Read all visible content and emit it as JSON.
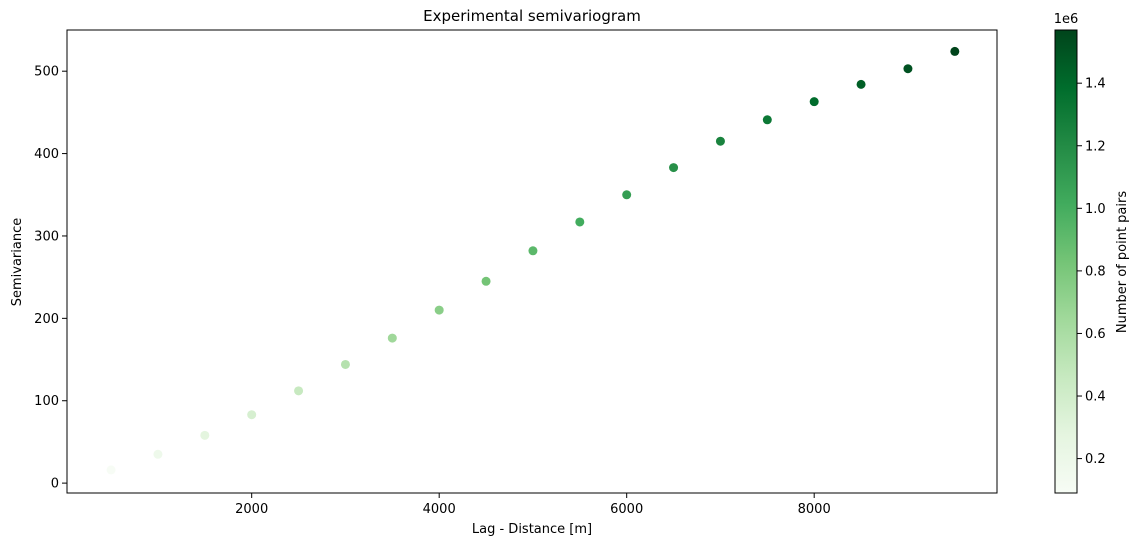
{
  "chart_data": {
    "type": "scatter",
    "title": "Experimental semivariogram",
    "xlabel": "Lag - Distance [m]",
    "ylabel": "Semivariance",
    "xlim": [
      30,
      9950
    ],
    "ylim": [
      -12,
      550
    ],
    "xticks": [
      2000,
      4000,
      6000,
      8000
    ],
    "xtick_labels": [
      "2000",
      "4000",
      "6000",
      "8000"
    ],
    "yticks": [
      0,
      100,
      200,
      300,
      400,
      500
    ],
    "ytick_labels": [
      "0",
      "100",
      "200",
      "300",
      "400",
      "500"
    ],
    "grid": false,
    "series": [
      {
        "x": [
          500,
          1000,
          1500,
          2000,
          2500,
          3000,
          3500,
          4000,
          4500,
          5000,
          5500,
          6000,
          6500,
          7000,
          7500,
          8000,
          8500,
          9000,
          9500
        ],
        "y": [
          16,
          35,
          58,
          83,
          112,
          144,
          176,
          210,
          245,
          282,
          317,
          350,
          383,
          415,
          441,
          463,
          484,
          503,
          524
        ],
        "color_values": [
          0.09,
          0.18,
          0.28,
          0.37,
          0.46,
          0.55,
          0.65,
          0.74,
          0.83,
          0.92,
          1.01,
          1.09,
          1.17,
          1.25,
          1.32,
          1.39,
          1.45,
          1.51,
          1.57
        ]
      }
    ],
    "colorbar": {
      "label": "Number of point pairs",
      "offset_label": "1e6",
      "min": 0.09,
      "max": 1.57,
      "ticks": [
        0.2,
        0.4,
        0.6,
        0.8,
        1.0,
        1.2,
        1.4
      ],
      "tick_labels": [
        "0.2",
        "0.4",
        "0.6",
        "0.8",
        "1.0",
        "1.2",
        "1.4"
      ],
      "colormap": "Greens",
      "colors": [
        "#f7fcf5",
        "#e5f5e0",
        "#c7e9c0",
        "#a1d99b",
        "#74c476",
        "#41ab5d",
        "#238b45",
        "#006d2c",
        "#00441b"
      ]
    }
  }
}
